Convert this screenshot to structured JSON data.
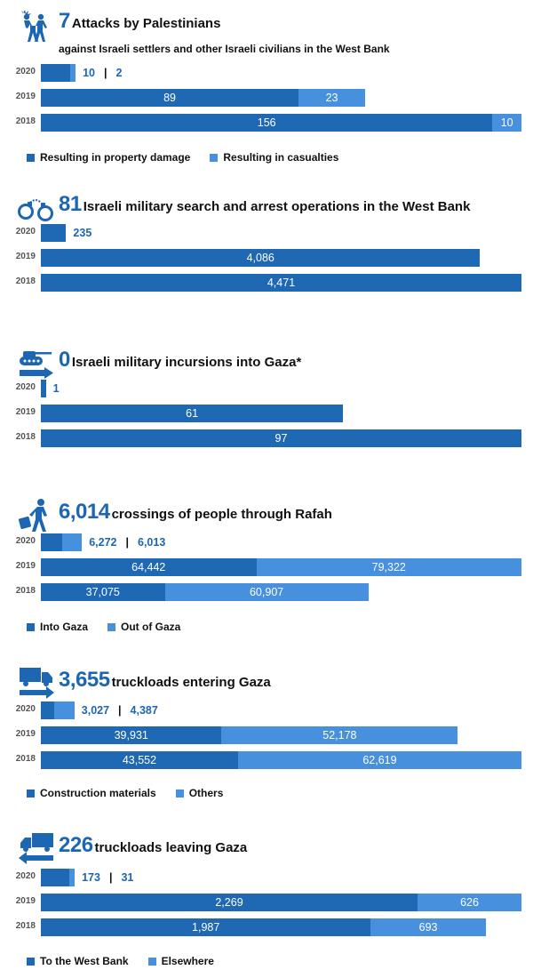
{
  "colors": {
    "primary": "#1f68b4",
    "secondary": "#4690de",
    "headline": "#1c66b3"
  },
  "chart_data": [
    {
      "type": "bar",
      "orientation": "horizontal",
      "stacked": true,
      "icon": "attack-people-icon",
      "headline_number": "7",
      "title": "Attacks by Palestinians",
      "subtitle": "against Israeli settlers and other Israeli civilians in the West Bank",
      "categories": [
        "2020",
        "2019",
        "2018"
      ],
      "series": [
        {
          "name": "Resulting in property damage",
          "values": [
            10,
            89,
            156
          ],
          "labels": [
            "10",
            "89",
            "156"
          ]
        },
        {
          "name": "Resulting in casualties",
          "values": [
            2,
            23,
            10
          ],
          "labels": [
            "2",
            "23",
            "10"
          ]
        }
      ],
      "legend": [
        "Resulting in property damage",
        "Resulting in casualties"
      ],
      "legend_position": "bottom-left"
    },
    {
      "type": "bar",
      "orientation": "horizontal",
      "stacked": false,
      "icon": "handcuffs-icon",
      "headline_number": "81",
      "title": "Israeli military search and arrest operations in the West Bank",
      "subtitle": "",
      "categories": [
        "2020",
        "2019",
        "2018"
      ],
      "series": [
        {
          "name": "Operations",
          "values": [
            235,
            4086,
            4471
          ],
          "labels": [
            "235",
            "4,086",
            "4,471"
          ]
        }
      ],
      "legend": []
    },
    {
      "type": "bar",
      "orientation": "horizontal",
      "stacked": false,
      "icon": "tank-arrow-icon",
      "headline_number": "0",
      "title": "Israeli military incursions into Gaza*",
      "subtitle": "",
      "categories": [
        "2020",
        "2019",
        "2018"
      ],
      "series": [
        {
          "name": "Incursions",
          "values": [
            1,
            61,
            97
          ],
          "labels": [
            "1",
            "61",
            "97"
          ]
        }
      ],
      "legend": []
    },
    {
      "type": "bar",
      "orientation": "horizontal",
      "stacked": true,
      "icon": "walking-person-luggage-icon",
      "headline_number": "6,014",
      "title": "crossings of people through Rafah",
      "subtitle": "",
      "categories": [
        "2020",
        "2019",
        "2018"
      ],
      "series": [
        {
          "name": "Into Gaza",
          "values": [
            6272,
            64442,
            37075
          ],
          "labels": [
            "6,272",
            "64,442",
            "37,075"
          ]
        },
        {
          "name": "Out of Gaza",
          "values": [
            6013,
            79322,
            60907
          ],
          "labels": [
            "6,013",
            "79,322",
            "60,907"
          ]
        }
      ],
      "legend": [
        "Into Gaza",
        "Out of Gaza"
      ],
      "legend_position": "bottom-left"
    },
    {
      "type": "bar",
      "orientation": "horizontal",
      "stacked": true,
      "icon": "truck-arrow-right-icon",
      "headline_number": "3,655",
      "title": "truckloads entering Gaza",
      "subtitle": "",
      "categories": [
        "2020",
        "2019",
        "2018"
      ],
      "series": [
        {
          "name": "Construction materials",
          "values": [
            3027,
            39931,
            43552
          ],
          "labels": [
            "3,027",
            "39,931",
            "43,552"
          ]
        },
        {
          "name": "Others",
          "values": [
            4387,
            52178,
            62619
          ],
          "labels": [
            "4,387",
            "52,178",
            "62,619"
          ]
        }
      ],
      "legend": [
        "Construction materials",
        "Others"
      ],
      "legend_position": "bottom-left"
    },
    {
      "type": "bar",
      "orientation": "horizontal",
      "stacked": true,
      "icon": "truck-arrow-left-icon",
      "headline_number": "226",
      "title": "truckloads leaving Gaza",
      "subtitle": "",
      "categories": [
        "2020",
        "2019",
        "2018"
      ],
      "series": [
        {
          "name": "To the West Bank",
          "values": [
            173,
            2269,
            1987
          ],
          "labels": [
            "173",
            "2,269",
            "1,987"
          ]
        },
        {
          "name": "Elsewhere",
          "values": [
            31,
            626,
            693
          ],
          "labels": [
            "31",
            "626",
            "693"
          ]
        }
      ],
      "legend": [
        "To the West Bank",
        "Elsewhere"
      ],
      "legend_position": "bottom-left"
    }
  ]
}
